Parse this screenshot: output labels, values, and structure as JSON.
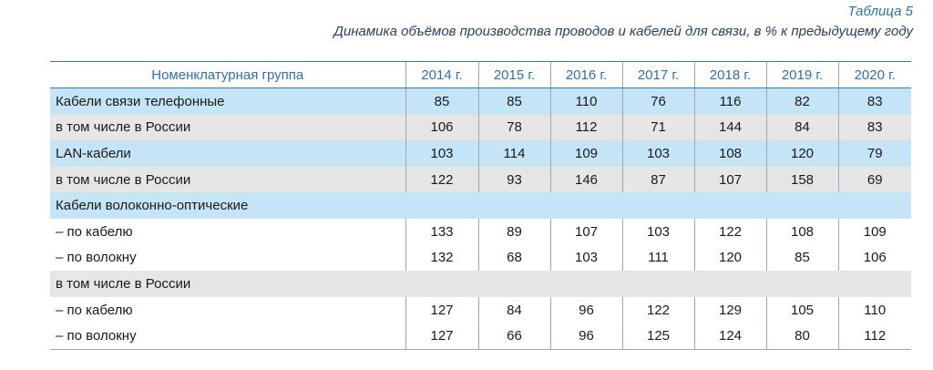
{
  "caption": {
    "label": "Таблица 5",
    "title": "Динамика объёмов производства проводов и кабелей для связи, в % к предыдущему году"
  },
  "table": {
    "headers": [
      "Номенклатурная группа",
      "2014 г.",
      "2015 г.",
      "2016 г.",
      "2017 г.",
      "2018 г.",
      "2019 г.",
      "2020 г."
    ],
    "rows": [
      {
        "name": "Кабели связи телефонные",
        "values": [
          "85",
          "85",
          "110",
          "76",
          "116",
          "82",
          "83"
        ],
        "style": "blue"
      },
      {
        "name": "в том числе в России",
        "values": [
          "106",
          "78",
          "112",
          "71",
          "144",
          "84",
          "83"
        ],
        "style": "gray"
      },
      {
        "name": "LAN-кабели",
        "values": [
          "103",
          "114",
          "109",
          "103",
          "108",
          "120",
          "79"
        ],
        "style": "blue"
      },
      {
        "name": "в том числе в России",
        "values": [
          "122",
          "93",
          "146",
          "87",
          "107",
          "158",
          "69"
        ],
        "style": "gray"
      },
      {
        "name": "Кабели волоконно-оптические",
        "values": null,
        "style": "blue"
      },
      {
        "name": "– по кабелю",
        "values": [
          "133",
          "89",
          "107",
          "103",
          "122",
          "108",
          "109"
        ],
        "style": "white"
      },
      {
        "name": "– по волокну",
        "values": [
          "132",
          "68",
          "103",
          "111",
          "120",
          "85",
          "106"
        ],
        "style": "white"
      },
      {
        "name": "в том числе в России",
        "values": null,
        "style": "gray"
      },
      {
        "name": "– по кабелю",
        "values": [
          "127",
          "84",
          "96",
          "122",
          "129",
          "105",
          "110"
        ],
        "style": "white"
      },
      {
        "name": "– по волокну",
        "values": [
          "127",
          "66",
          "96",
          "125",
          "124",
          "80",
          "112"
        ],
        "style": "white"
      }
    ]
  }
}
